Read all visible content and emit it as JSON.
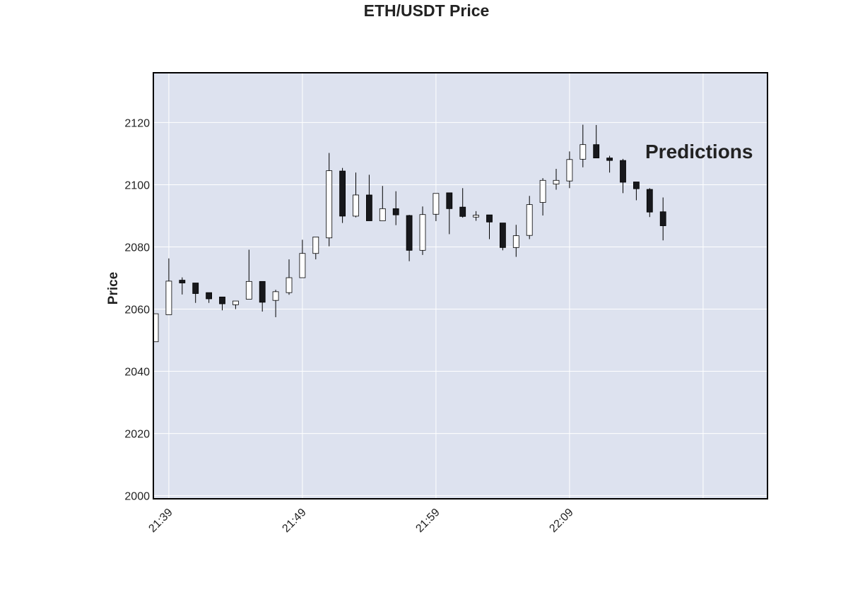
{
  "chart_data": {
    "type": "candlestick",
    "title": "ETH/USDT Price",
    "ylabel": "Price",
    "xlabel": "",
    "annotation": "Predictions",
    "ylim": [
      1999,
      2136
    ],
    "y_ticks": [
      2000,
      2020,
      2040,
      2060,
      2080,
      2100,
      2120
    ],
    "x_ticks": [
      "21:39",
      "21:49",
      "21:59",
      "22:09"
    ],
    "grid": true,
    "colors": {
      "plot_background": "#dde2ef",
      "grid": "#ffffff",
      "up_fill": "#ffffff",
      "down_fill": "#17181c",
      "outline": "#000000"
    },
    "candles": [
      {
        "time": "21:38",
        "open": 2049.5,
        "high": 2058.5,
        "low": 2049.5,
        "close": 2058.5
      },
      {
        "time": "21:39",
        "open": 2058.2,
        "high": 2076.3,
        "low": 2058.2,
        "close": 2069.0
      },
      {
        "time": "21:40",
        "open": 2069.3,
        "high": 2070.2,
        "low": 2064.7,
        "close": 2068.4
      },
      {
        "time": "21:41",
        "open": 2068.4,
        "high": 2068.4,
        "low": 2062.0,
        "close": 2065.0
      },
      {
        "time": "21:42",
        "open": 2065.3,
        "high": 2065.3,
        "low": 2062.0,
        "close": 2063.3
      },
      {
        "time": "21:43",
        "open": 2063.9,
        "high": 2063.9,
        "low": 2059.6,
        "close": 2061.7
      },
      {
        "time": "21:44",
        "open": 2061.4,
        "high": 2062.6,
        "low": 2060.0,
        "close": 2062.6
      },
      {
        "time": "21:45",
        "open": 2063.2,
        "high": 2079.1,
        "low": 2063.2,
        "close": 2068.9
      },
      {
        "time": "21:46",
        "open": 2068.9,
        "high": 2068.9,
        "low": 2059.2,
        "close": 2062.2
      },
      {
        "time": "21:47",
        "open": 2062.8,
        "high": 2066.2,
        "low": 2057.4,
        "close": 2065.6
      },
      {
        "time": "21:48",
        "open": 2065.3,
        "high": 2076.0,
        "low": 2064.6,
        "close": 2070.1
      },
      {
        "time": "21:49",
        "open": 2070.1,
        "high": 2082.3,
        "low": 2070.1,
        "close": 2077.9
      },
      {
        "time": "21:50",
        "open": 2077.9,
        "high": 2083.2,
        "low": 2076.0,
        "close": 2083.2
      },
      {
        "time": "21:51",
        "open": 2082.9,
        "high": 2110.2,
        "low": 2080.2,
        "close": 2104.5
      },
      {
        "time": "21:52",
        "open": 2104.4,
        "high": 2105.4,
        "low": 2087.7,
        "close": 2089.9
      },
      {
        "time": "21:53",
        "open": 2089.9,
        "high": 2103.9,
        "low": 2089.5,
        "close": 2096.7
      },
      {
        "time": "21:54",
        "open": 2096.7,
        "high": 2103.2,
        "low": 2088.4,
        "close": 2088.4
      },
      {
        "time": "21:55",
        "open": 2088.4,
        "high": 2099.6,
        "low": 2088.4,
        "close": 2092.3
      },
      {
        "time": "21:56",
        "open": 2092.3,
        "high": 2097.9,
        "low": 2087.0,
        "close": 2090.3
      },
      {
        "time": "21:57",
        "open": 2090.1,
        "high": 2090.3,
        "low": 2075.4,
        "close": 2078.9
      },
      {
        "time": "21:58",
        "open": 2078.9,
        "high": 2093.0,
        "low": 2077.4,
        "close": 2090.4
      },
      {
        "time": "21:59",
        "open": 2090.5,
        "high": 2097.2,
        "low": 2088.3,
        "close": 2097.2
      },
      {
        "time": "22:00",
        "open": 2097.4,
        "high": 2097.4,
        "low": 2084.1,
        "close": 2092.3
      },
      {
        "time": "22:01",
        "open": 2092.8,
        "high": 2098.9,
        "low": 2089.4,
        "close": 2089.8
      },
      {
        "time": "22:02",
        "open": 2089.6,
        "high": 2091.5,
        "low": 2088.4,
        "close": 2090.2
      },
      {
        "time": "22:03",
        "open": 2090.3,
        "high": 2090.3,
        "low": 2082.5,
        "close": 2088.0
      },
      {
        "time": "22:04",
        "open": 2087.7,
        "high": 2087.7,
        "low": 2078.9,
        "close": 2079.8
      },
      {
        "time": "22:05",
        "open": 2079.8,
        "high": 2087.1,
        "low": 2076.8,
        "close": 2083.6
      },
      {
        "time": "22:06",
        "open": 2083.7,
        "high": 2096.4,
        "low": 2082.5,
        "close": 2093.6
      },
      {
        "time": "22:07",
        "open": 2094.3,
        "high": 2102.1,
        "low": 2090.1,
        "close": 2101.4
      },
      {
        "time": "22:08",
        "open": 2100.2,
        "high": 2105.1,
        "low": 2098.4,
        "close": 2101.4
      },
      {
        "time": "22:09",
        "open": 2101.2,
        "high": 2110.7,
        "low": 2098.9,
        "close": 2108.1
      },
      {
        "time": "22:10",
        "open": 2108.2,
        "high": 2119.3,
        "low": 2105.6,
        "close": 2112.9
      },
      {
        "time": "22:11",
        "open": 2112.9,
        "high": 2119.2,
        "low": 2108.6,
        "close": 2108.6
      },
      {
        "time": "22:12",
        "open": 2108.6,
        "high": 2109.3,
        "low": 2103.9,
        "close": 2107.8
      },
      {
        "time": "22:13",
        "open": 2107.8,
        "high": 2108.3,
        "low": 2097.3,
        "close": 2100.8
      },
      {
        "time": "22:14",
        "open": 2100.9,
        "high": 2100.9,
        "low": 2095.0,
        "close": 2098.7
      },
      {
        "time": "22:15",
        "open": 2098.5,
        "high": 2098.9,
        "low": 2089.6,
        "close": 2091.2
      },
      {
        "time": "22:16",
        "open": 2091.3,
        "high": 2095.9,
        "low": 2082.1,
        "close": 2086.8
      }
    ]
  }
}
